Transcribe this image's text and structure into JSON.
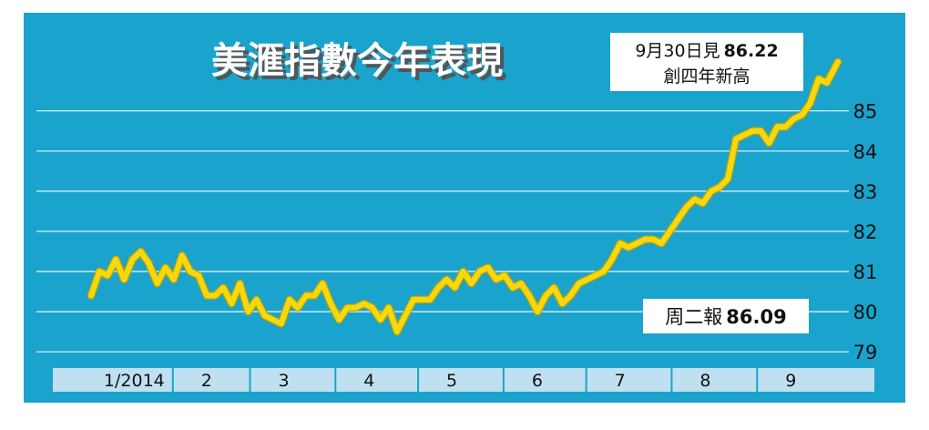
{
  "chart_data": {
    "type": "line",
    "title": "美滙指數今年表現",
    "x_tick_labels": [
      "1/2014",
      "2",
      "3",
      "4",
      "5",
      "6",
      "7",
      "8",
      "9"
    ],
    "y_ticks": [
      79,
      80,
      81,
      82,
      83,
      84,
      85
    ],
    "ylim": [
      78.8,
      86.4
    ],
    "grid": true,
    "series": [
      {
        "color": "#f5d80f",
        "x": [
          "2014-01-02",
          "2014-01-05",
          "2014-01-08",
          "2014-01-11",
          "2014-01-14",
          "2014-01-17",
          "2014-01-20",
          "2014-01-23",
          "2014-01-26",
          "2014-01-29",
          "2014-02-01",
          "2014-02-04",
          "2014-02-07",
          "2014-02-10",
          "2014-02-13",
          "2014-02-16",
          "2014-02-19",
          "2014-02-22",
          "2014-02-25",
          "2014-02-28",
          "2014-03-03",
          "2014-03-06",
          "2014-03-09",
          "2014-03-12",
          "2014-03-15",
          "2014-03-18",
          "2014-03-21",
          "2014-03-24",
          "2014-03-27",
          "2014-03-30",
          "2014-04-02",
          "2014-04-05",
          "2014-04-08",
          "2014-04-11",
          "2014-04-14",
          "2014-04-17",
          "2014-04-20",
          "2014-04-23",
          "2014-04-26",
          "2014-04-29",
          "2014-05-02",
          "2014-05-05",
          "2014-05-08",
          "2014-05-11",
          "2014-05-14",
          "2014-05-17",
          "2014-05-20",
          "2014-05-23",
          "2014-05-26",
          "2014-05-29",
          "2014-06-01",
          "2014-06-04",
          "2014-06-07",
          "2014-06-10",
          "2014-06-13",
          "2014-06-16",
          "2014-06-19",
          "2014-06-22",
          "2014-06-25",
          "2014-06-28",
          "2014-07-01",
          "2014-07-04",
          "2014-07-07",
          "2014-07-10",
          "2014-07-13",
          "2014-07-16",
          "2014-07-19",
          "2014-07-22",
          "2014-07-25",
          "2014-07-28",
          "2014-07-31",
          "2014-08-03",
          "2014-08-06",
          "2014-08-09",
          "2014-08-12",
          "2014-08-15",
          "2014-08-18",
          "2014-08-21",
          "2014-08-24",
          "2014-08-27",
          "2014-08-30",
          "2014-09-02",
          "2014-09-05",
          "2014-09-08",
          "2014-09-11",
          "2014-09-14",
          "2014-09-17",
          "2014-09-20",
          "2014-09-23",
          "2014-09-26",
          "2014-09-30"
        ],
        "values": [
          80.4,
          81.0,
          80.9,
          81.3,
          80.8,
          81.3,
          81.5,
          81.2,
          80.7,
          81.1,
          80.8,
          81.4,
          81.0,
          80.9,
          80.4,
          80.4,
          80.6,
          80.2,
          80.7,
          80.0,
          80.3,
          79.9,
          79.8,
          79.7,
          80.3,
          80.1,
          80.4,
          80.4,
          80.7,
          80.2,
          79.8,
          80.1,
          80.1,
          80.2,
          80.1,
          79.8,
          80.1,
          79.5,
          79.9,
          80.3,
          80.3,
          80.3,
          80.6,
          80.8,
          80.6,
          81.0,
          80.7,
          81.0,
          81.1,
          80.8,
          80.9,
          80.6,
          80.7,
          80.4,
          80.0,
          80.4,
          80.6,
          80.2,
          80.4,
          80.7,
          80.8,
          80.9,
          81.0,
          81.3,
          81.7,
          81.6,
          81.7,
          81.8,
          81.8,
          81.7,
          82.0,
          82.3,
          82.6,
          82.8,
          82.7,
          83.0,
          83.1,
          83.3,
          84.3,
          84.4,
          84.5,
          84.5,
          84.2,
          84.6,
          84.6,
          84.8,
          84.9,
          85.2,
          85.8,
          85.7,
          86.22
        ]
      }
    ],
    "annotations": [
      {
        "line1_prefix": "9月30日見",
        "line1_value": "86.22",
        "line2": "創四年新高"
      },
      {
        "prefix": "周二報",
        "value": "86.09"
      }
    ]
  },
  "colors": {
    "background": "#1aa3cc",
    "line": "#f5d80f",
    "line_edge": "#c2a300",
    "gridline": "#e8f7fc",
    "axis_band": "#bfe0f0",
    "title": "#ffffff",
    "title_shadow": "#555555",
    "note_box": "#ffffff",
    "text": "#111111"
  }
}
